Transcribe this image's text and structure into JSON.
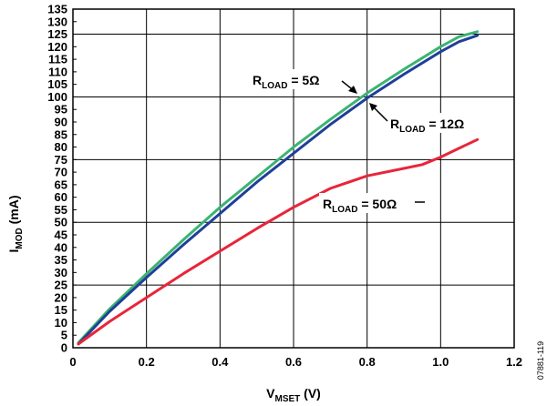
{
  "chart_data": {
    "type": "line",
    "xlabel": {
      "main": "V",
      "sub": "MSET",
      "suffix": " (V)"
    },
    "ylabel": {
      "main": "I",
      "sub": "MOD",
      "suffix": " (mA)"
    },
    "xlim": [
      0,
      1.2
    ],
    "ylim": [
      0,
      135
    ],
    "x_ticks": [
      0,
      0.2,
      0.4,
      0.6,
      0.8,
      1.0,
      1.2
    ],
    "x_tick_labels": [
      "0",
      "0.2",
      "0.4",
      "0.6",
      "0.8",
      "1.0",
      "1.2"
    ],
    "y_ticks": [
      0,
      5,
      10,
      15,
      20,
      25,
      30,
      35,
      40,
      45,
      50,
      55,
      60,
      65,
      70,
      75,
      80,
      85,
      90,
      95,
      100,
      105,
      110,
      115,
      120,
      125,
      130,
      135
    ],
    "grid": true,
    "series": [
      {
        "name": "R_LOAD = 5Ω",
        "color": "#3cb371",
        "x": [
          0.015,
          0.1,
          0.2,
          0.3,
          0.4,
          0.5,
          0.6,
          0.7,
          0.8,
          0.9,
          1.0,
          1.05,
          1.1
        ],
        "y": [
          2,
          15.5,
          29.5,
          43,
          56,
          68,
          80,
          91,
          101.5,
          111,
          120,
          124,
          126
        ]
      },
      {
        "name": "R_LOAD = 12Ω",
        "color": "#1f3f99",
        "x": [
          0.015,
          0.1,
          0.2,
          0.3,
          0.4,
          0.5,
          0.6,
          0.7,
          0.8,
          0.9,
          1.0,
          1.05,
          1.1
        ],
        "y": [
          1.5,
          14.5,
          28,
          41,
          53.5,
          66,
          77.5,
          89,
          99.5,
          109,
          118,
          122,
          124.5
        ]
      },
      {
        "name": "R_LOAD = 50Ω",
        "color": "#e8253a",
        "x": [
          0.015,
          0.1,
          0.2,
          0.3,
          0.4,
          0.5,
          0.6,
          0.7,
          0.8,
          0.9,
          0.95,
          1.0,
          1.05,
          1.1
        ],
        "y": [
          1.5,
          10.5,
          20,
          29.5,
          38.5,
          47.5,
          56,
          63.5,
          68.5,
          71.5,
          73,
          76,
          79.5,
          83
        ]
      }
    ],
    "annotations": [
      {
        "main": "R",
        "sub": "LOAD",
        "suffix": " = 5Ω",
        "target_x": 0.78,
        "target_y": 97
      },
      {
        "main": "R",
        "sub": "LOAD",
        "suffix": " = 12Ω",
        "target_x": 0.8,
        "target_y": 99.5
      },
      {
        "main": "R",
        "sub": "LOAD",
        "suffix": " = 50Ω",
        "target_x": 0.0,
        "target_y": 0.0
      }
    ],
    "figure_id": "07881-119"
  }
}
